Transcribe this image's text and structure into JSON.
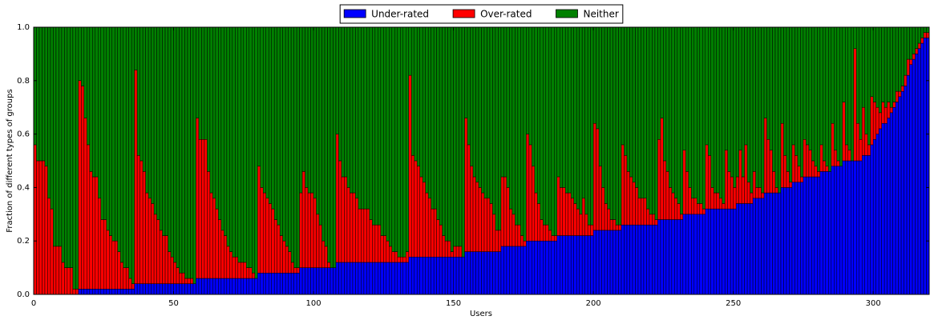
{
  "chart_data": {
    "type": "stacked_bar",
    "xlabel": "Users",
    "ylabel": "Fraction of different types of groups",
    "legend": "upper center",
    "grid": false,
    "xlim": [
      0,
      320
    ],
    "xticks": [
      0,
      50,
      100,
      150,
      200,
      250,
      300
    ],
    "ylim": [
      0,
      1
    ],
    "yticks": [
      {
        "value": 0,
        "label": "0.0"
      },
      0.2,
      0.4,
      0.6,
      0.8,
      {
        "value": 1,
        "label": "1.0"
      }
    ],
    "x": [
      0,
      1,
      2,
      3,
      4,
      5,
      6,
      7,
      8,
      9,
      10,
      11,
      12,
      13,
      14,
      15,
      16,
      17,
      18,
      19,
      20,
      21,
      22,
      23,
      24,
      25,
      26,
      27,
      28,
      29,
      30,
      31,
      32,
      33,
      34,
      35,
      36,
      37,
      38,
      39,
      40,
      41,
      42,
      43,
      44,
      45,
      46,
      47,
      48,
      49,
      50,
      51,
      52,
      53,
      54,
      55,
      56,
      57,
      58,
      59,
      60,
      61,
      62,
      63,
      64,
      65,
      66,
      67,
      68,
      69,
      70,
      71,
      72,
      73,
      74,
      75,
      76,
      77,
      78,
      79,
      80,
      81,
      82,
      83,
      84,
      85,
      86,
      87,
      88,
      89,
      90,
      91,
      92,
      93,
      94,
      95,
      96,
      97,
      98,
      99,
      100,
      101,
      102,
      103,
      104,
      105,
      106,
      107,
      108,
      109,
      110,
      111,
      112,
      113,
      114,
      115,
      116,
      117,
      118,
      119,
      120,
      121,
      122,
      123,
      124,
      125,
      126,
      127,
      128,
      129,
      130,
      131,
      132,
      133,
      134,
      135,
      136,
      137,
      138,
      139,
      140,
      141,
      142,
      143,
      144,
      145,
      146,
      147,
      148,
      149,
      150,
      151,
      152,
      153,
      154,
      155,
      156,
      157,
      158,
      159,
      160,
      161,
      162,
      163,
      164,
      165,
      166,
      167,
      168,
      169,
      170,
      171,
      172,
      173,
      174,
      175,
      176,
      177,
      178,
      179,
      180,
      181,
      182,
      183,
      184,
      185,
      186,
      187,
      188,
      189,
      190,
      191,
      192,
      193,
      194,
      195,
      196,
      197,
      198,
      199,
      200,
      201,
      202,
      203,
      204,
      205,
      206,
      207,
      208,
      209,
      210,
      211,
      212,
      213,
      214,
      215,
      216,
      217,
      218,
      219,
      220,
      221,
      222,
      223,
      224,
      225,
      226,
      227,
      228,
      229,
      230,
      231,
      232,
      233,
      234,
      235,
      236,
      237,
      238,
      239,
      240,
      241,
      242,
      243,
      244,
      245,
      246,
      247,
      248,
      249,
      250,
      251,
      252,
      253,
      254,
      255,
      256,
      257,
      258,
      259,
      260,
      261,
      262,
      263,
      264,
      265,
      266,
      267,
      268,
      269,
      270,
      271,
      272,
      273,
      274,
      275,
      276,
      277,
      278,
      279,
      280,
      281,
      282,
      283,
      284,
      285,
      286,
      287,
      288,
      289,
      290,
      291,
      292,
      293,
      294,
      295,
      296,
      297,
      298,
      299,
      300,
      301,
      302,
      303,
      304,
      305,
      306,
      307,
      308,
      309,
      310,
      311,
      312,
      313,
      314,
      315,
      316,
      317,
      318,
      319
    ],
    "series": [
      {
        "name": "Under-rated",
        "color": "#0000ff",
        "values": [
          0,
          0,
          0,
          0,
          0,
          0,
          0,
          0,
          0,
          0,
          0,
          0,
          0,
          0,
          0,
          0,
          0.02,
          0.02,
          0.02,
          0.02,
          0.02,
          0.02,
          0.02,
          0.02,
          0.02,
          0.02,
          0.02,
          0.02,
          0.02,
          0.02,
          0.02,
          0.02,
          0.02,
          0.02,
          0.02,
          0.02,
          0.04,
          0.04,
          0.04,
          0.04,
          0.04,
          0.04,
          0.04,
          0.04,
          0.04,
          0.04,
          0.04,
          0.04,
          0.04,
          0.04,
          0.04,
          0.04,
          0.04,
          0.04,
          0.04,
          0.04,
          0.04,
          0.04,
          0.06,
          0.06,
          0.06,
          0.06,
          0.06,
          0.06,
          0.06,
          0.06,
          0.06,
          0.06,
          0.06,
          0.06,
          0.06,
          0.06,
          0.06,
          0.06,
          0.06,
          0.06,
          0.06,
          0.06,
          0.06,
          0.06,
          0.08,
          0.08,
          0.08,
          0.08,
          0.08,
          0.08,
          0.08,
          0.08,
          0.08,
          0.08,
          0.08,
          0.08,
          0.08,
          0.08,
          0.08,
          0.1,
          0.1,
          0.1,
          0.1,
          0.1,
          0.1,
          0.1,
          0.1,
          0.1,
          0.1,
          0.1,
          0.1,
          0.1,
          0.12,
          0.12,
          0.12,
          0.12,
          0.12,
          0.12,
          0.12,
          0.12,
          0.12,
          0.12,
          0.12,
          0.12,
          0.12,
          0.12,
          0.12,
          0.12,
          0.12,
          0.12,
          0.12,
          0.12,
          0.12,
          0.12,
          0.12,
          0.12,
          0.12,
          0.12,
          0.14,
          0.14,
          0.14,
          0.14,
          0.14,
          0.14,
          0.14,
          0.14,
          0.14,
          0.14,
          0.14,
          0.14,
          0.14,
          0.14,
          0.14,
          0.14,
          0.14,
          0.14,
          0.14,
          0.14,
          0.16,
          0.16,
          0.16,
          0.16,
          0.16,
          0.16,
          0.16,
          0.16,
          0.16,
          0.16,
          0.16,
          0.16,
          0.16,
          0.18,
          0.18,
          0.18,
          0.18,
          0.18,
          0.18,
          0.18,
          0.18,
          0.18,
          0.2,
          0.2,
          0.2,
          0.2,
          0.2,
          0.2,
          0.2,
          0.2,
          0.2,
          0.2,
          0.2,
          0.22,
          0.22,
          0.22,
          0.22,
          0.22,
          0.22,
          0.22,
          0.22,
          0.22,
          0.22,
          0.22,
          0.22,
          0.22,
          0.24,
          0.24,
          0.24,
          0.24,
          0.24,
          0.24,
          0.24,
          0.24,
          0.24,
          0.24,
          0.26,
          0.26,
          0.26,
          0.26,
          0.26,
          0.26,
          0.26,
          0.26,
          0.26,
          0.26,
          0.26,
          0.26,
          0.26,
          0.28,
          0.28,
          0.28,
          0.28,
          0.28,
          0.28,
          0.28,
          0.28,
          0.28,
          0.3,
          0.3,
          0.3,
          0.3,
          0.3,
          0.3,
          0.3,
          0.3,
          0.32,
          0.32,
          0.32,
          0.32,
          0.32,
          0.32,
          0.32,
          0.32,
          0.32,
          0.32,
          0.32,
          0.34,
          0.34,
          0.34,
          0.34,
          0.34,
          0.34,
          0.36,
          0.36,
          0.36,
          0.36,
          0.38,
          0.38,
          0.38,
          0.38,
          0.38,
          0.38,
          0.4,
          0.4,
          0.4,
          0.4,
          0.42,
          0.42,
          0.42,
          0.42,
          0.44,
          0.44,
          0.44,
          0.44,
          0.44,
          0.44,
          0.46,
          0.46,
          0.46,
          0.46,
          0.48,
          0.48,
          0.48,
          0.48,
          0.5,
          0.5,
          0.5,
          0.5,
          0.5,
          0.5,
          0.5,
          0.52,
          0.52,
          0.52,
          0.56,
          0.58,
          0.6,
          0.62,
          0.64,
          0.64,
          0.66,
          0.68,
          0.7,
          0.72,
          0.74,
          0.76,
          0.78,
          0.82,
          0.86,
          0.88,
          0.9,
          0.92,
          0.94,
          0.96,
          0.96
        ]
      },
      {
        "name": "Over-rated",
        "color": "#ff0000",
        "values": [
          0.56,
          0.5,
          0.5,
          0.5,
          0.48,
          0.36,
          0.32,
          0.18,
          0.18,
          0.18,
          0.12,
          0.1,
          0.1,
          0.1,
          0.02,
          0.02,
          0.78,
          0.76,
          0.64,
          0.54,
          0.44,
          0.42,
          0.42,
          0.34,
          0.26,
          0.26,
          0.22,
          0.2,
          0.18,
          0.18,
          0.14,
          0.1,
          0.08,
          0.08,
          0.04,
          0.02,
          0.8,
          0.48,
          0.46,
          0.42,
          0.34,
          0.32,
          0.3,
          0.26,
          0.24,
          0.2,
          0.18,
          0.18,
          0.12,
          0.1,
          0.08,
          0.06,
          0.04,
          0.04,
          0.02,
          0.02,
          0.02,
          0,
          0.6,
          0.52,
          0.52,
          0.52,
          0.4,
          0.32,
          0.3,
          0.26,
          0.22,
          0.18,
          0.16,
          0.12,
          0.1,
          0.08,
          0.08,
          0.06,
          0.06,
          0.06,
          0.04,
          0.04,
          0.02,
          0,
          0.4,
          0.32,
          0.3,
          0.28,
          0.26,
          0.24,
          0.2,
          0.18,
          0.14,
          0.12,
          0.1,
          0.08,
          0.04,
          0.02,
          0.02,
          0.28,
          0.36,
          0.3,
          0.28,
          0.28,
          0.26,
          0.2,
          0.16,
          0.1,
          0.08,
          0.02,
          0,
          0,
          0.48,
          0.38,
          0.32,
          0.32,
          0.28,
          0.26,
          0.26,
          0.24,
          0.2,
          0.2,
          0.2,
          0.2,
          0.16,
          0.14,
          0.14,
          0.14,
          0.1,
          0.1,
          0.08,
          0.06,
          0.04,
          0.04,
          0.02,
          0.02,
          0.02,
          0.04,
          0.68,
          0.38,
          0.36,
          0.34,
          0.3,
          0.28,
          0.24,
          0.22,
          0.18,
          0.18,
          0.14,
          0.12,
          0.08,
          0.06,
          0.06,
          0.02,
          0.04,
          0.04,
          0.04,
          0,
          0.5,
          0.4,
          0.32,
          0.28,
          0.26,
          0.24,
          0.22,
          0.2,
          0.2,
          0.18,
          0.14,
          0.08,
          0.08,
          0.26,
          0.26,
          0.22,
          0.14,
          0.12,
          0.08,
          0.08,
          0.04,
          0.02,
          0.4,
          0.36,
          0.28,
          0.18,
          0.14,
          0.08,
          0.06,
          0.06,
          0.04,
          0.02,
          0.02,
          0.22,
          0.18,
          0.18,
          0.16,
          0.16,
          0.14,
          0.12,
          0.1,
          0.08,
          0.14,
          0.08,
          0.04,
          0.04,
          0.4,
          0.38,
          0.24,
          0.16,
          0.1,
          0.08,
          0.04,
          0.04,
          0.02,
          0.02,
          0.3,
          0.26,
          0.2,
          0.18,
          0.16,
          0.14,
          0.1,
          0.1,
          0.1,
          0.06,
          0.04,
          0.04,
          0.02,
          0.3,
          0.38,
          0.22,
          0.18,
          0.12,
          0.1,
          0.08,
          0.06,
          0.02,
          0.24,
          0.16,
          0.1,
          0.06,
          0.06,
          0.04,
          0.04,
          0.02,
          0.24,
          0.2,
          0.08,
          0.06,
          0.06,
          0.04,
          0.02,
          0.22,
          0.14,
          0.12,
          0.08,
          0.1,
          0.2,
          0.1,
          0.22,
          0.08,
          0.04,
          0.1,
          0.04,
          0.04,
          0.02,
          0.28,
          0.2,
          0.16,
          0.08,
          0.02,
          0,
          0.24,
          0.12,
          0.06,
          0.02,
          0.14,
          0.1,
          0.06,
          0.02,
          0.14,
          0.12,
          0.1,
          0.06,
          0.04,
          0.02,
          0.1,
          0.04,
          0.02,
          0,
          0.16,
          0.06,
          0.02,
          0,
          0.22,
          0.06,
          0.04,
          0,
          0.42,
          0.14,
          0.08,
          0.18,
          0.08,
          0.04,
          0.18,
          0.14,
          0.1,
          0.06,
          0.08,
          0.06,
          0.06,
          0.02,
          0.02,
          0.04,
          0.02,
          0.02,
          0.04,
          0.06,
          0.02,
          0.02,
          0.02,
          0.02,
          0.02,
          0.02,
          0.02
        ]
      },
      {
        "name": "Neither",
        "color": "#008000",
        "values": [
          0.44,
          0.5,
          0.5,
          0.5,
          0.52,
          0.64,
          0.68,
          0.82,
          0.82,
          0.82,
          0.88,
          0.9,
          0.9,
          0.9,
          0.98,
          0.98,
          0.2,
          0.22,
          0.34,
          0.44,
          0.54,
          0.56,
          0.56,
          0.64,
          0.72,
          0.72,
          0.76,
          0.78,
          0.8,
          0.8,
          0.84,
          0.88,
          0.9,
          0.9,
          0.94,
          0.96,
          0.16,
          0.48,
          0.5,
          0.54,
          0.62,
          0.64,
          0.66,
          0.7,
          0.72,
          0.76,
          0.78,
          0.78,
          0.84,
          0.86,
          0.88,
          0.9,
          0.92,
          0.92,
          0.94,
          0.94,
          0.94,
          0.96,
          0.34,
          0.42,
          0.42,
          0.42,
          0.54,
          0.62,
          0.64,
          0.68,
          0.72,
          0.76,
          0.78,
          0.82,
          0.84,
          0.86,
          0.86,
          0.88,
          0.88,
          0.88,
          0.9,
          0.9,
          0.92,
          0.94,
          0.52,
          0.6,
          0.62,
          0.64,
          0.66,
          0.68,
          0.72,
          0.74,
          0.78,
          0.8,
          0.82,
          0.84,
          0.88,
          0.9,
          0.9,
          0.62,
          0.54,
          0.6,
          0.62,
          0.62,
          0.64,
          0.7,
          0.74,
          0.8,
          0.82,
          0.88,
          0.9,
          0.9,
          0.4,
          0.5,
          0.56,
          0.56,
          0.6,
          0.62,
          0.62,
          0.64,
          0.68,
          0.68,
          0.68,
          0.68,
          0.72,
          0.74,
          0.74,
          0.74,
          0.78,
          0.78,
          0.8,
          0.82,
          0.84,
          0.84,
          0.86,
          0.86,
          0.86,
          0.84,
          0.18,
          0.48,
          0.5,
          0.52,
          0.56,
          0.58,
          0.62,
          0.64,
          0.68,
          0.68,
          0.72,
          0.74,
          0.78,
          0.8,
          0.8,
          0.84,
          0.82,
          0.82,
          0.82,
          0.86,
          0.34,
          0.44,
          0.52,
          0.56,
          0.58,
          0.6,
          0.62,
          0.64,
          0.64,
          0.66,
          0.7,
          0.76,
          0.76,
          0.56,
          0.56,
          0.6,
          0.68,
          0.7,
          0.74,
          0.74,
          0.78,
          0.8,
          0.4,
          0.44,
          0.52,
          0.62,
          0.66,
          0.72,
          0.74,
          0.74,
          0.76,
          0.78,
          0.78,
          0.56,
          0.6,
          0.6,
          0.62,
          0.62,
          0.64,
          0.66,
          0.68,
          0.7,
          0.64,
          0.7,
          0.74,
          0.74,
          0.36,
          0.38,
          0.52,
          0.6,
          0.66,
          0.68,
          0.72,
          0.72,
          0.74,
          0.74,
          0.44,
          0.48,
          0.54,
          0.56,
          0.58,
          0.6,
          0.64,
          0.64,
          0.64,
          0.68,
          0.7,
          0.7,
          0.72,
          0.42,
          0.34,
          0.5,
          0.54,
          0.6,
          0.62,
          0.64,
          0.66,
          0.7,
          0.46,
          0.54,
          0.6,
          0.64,
          0.64,
          0.66,
          0.66,
          0.68,
          0.44,
          0.48,
          0.6,
          0.62,
          0.62,
          0.64,
          0.66,
          0.46,
          0.54,
          0.56,
          0.6,
          0.56,
          0.46,
          0.56,
          0.44,
          0.58,
          0.62,
          0.54,
          0.6,
          0.6,
          0.62,
          0.34,
          0.42,
          0.46,
          0.54,
          0.6,
          0.62,
          0.36,
          0.48,
          0.54,
          0.58,
          0.44,
          0.48,
          0.52,
          0.56,
          0.42,
          0.44,
          0.46,
          0.5,
          0.52,
          0.54,
          0.44,
          0.5,
          0.52,
          0.54,
          0.36,
          0.46,
          0.5,
          0.52,
          0.28,
          0.44,
          0.46,
          0.5,
          0.08,
          0.36,
          0.42,
          0.3,
          0.4,
          0.44,
          0.26,
          0.28,
          0.3,
          0.32,
          0.28,
          0.3,
          0.28,
          0.3,
          0.28,
          0.24,
          0.24,
          0.22,
          0.18,
          0.12,
          0.12,
          0.1,
          0.08,
          0.06,
          0.04,
          0.02,
          0.02
        ]
      }
    ]
  }
}
